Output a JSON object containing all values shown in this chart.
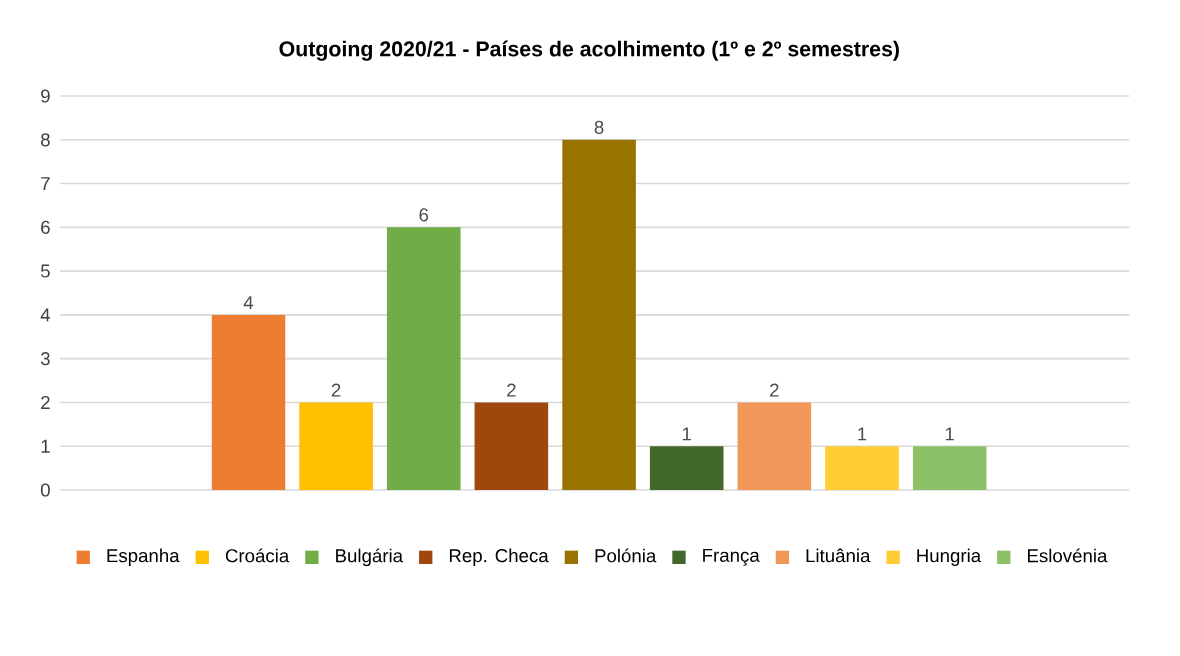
{
  "chart_data": {
    "type": "bar",
    "title": "Outgoing 2020/21 - Países de acolhimento (1º e 2º semestres)",
    "categories": [
      null
    ],
    "series": [
      {
        "name": "Espanha",
        "color": "#ed7d31",
        "values": [
          4
        ]
      },
      {
        "name": "Croácia",
        "color": "#ffc000",
        "values": [
          2
        ]
      },
      {
        "name": "Bulgária",
        "color": "#70ad47",
        "values": [
          6
        ]
      },
      {
        "name": "Rep. Checa",
        "color": "#9e480e",
        "values": [
          2
        ]
      },
      {
        "name": "Polónia",
        "color": "#997300",
        "values": [
          8
        ]
      },
      {
        "name": "França",
        "color": "#43682b",
        "values": [
          1
        ]
      },
      {
        "name": "Lituânia",
        "color": "#f1975a",
        "values": [
          2
        ]
      },
      {
        "name": "Hungria",
        "color": "#ffcd33",
        "values": [
          1
        ]
      },
      {
        "name": "Eslovénia",
        "color": "#8cc168",
        "values": [
          1
        ]
      }
    ],
    "ylim": [
      0,
      9
    ],
    "yticks": [
      0,
      1,
      2,
      3,
      4,
      5,
      6,
      7,
      8,
      9
    ],
    "grid": "y",
    "legend": "bottom",
    "data_labels": true,
    "tick_labels": "y"
  }
}
